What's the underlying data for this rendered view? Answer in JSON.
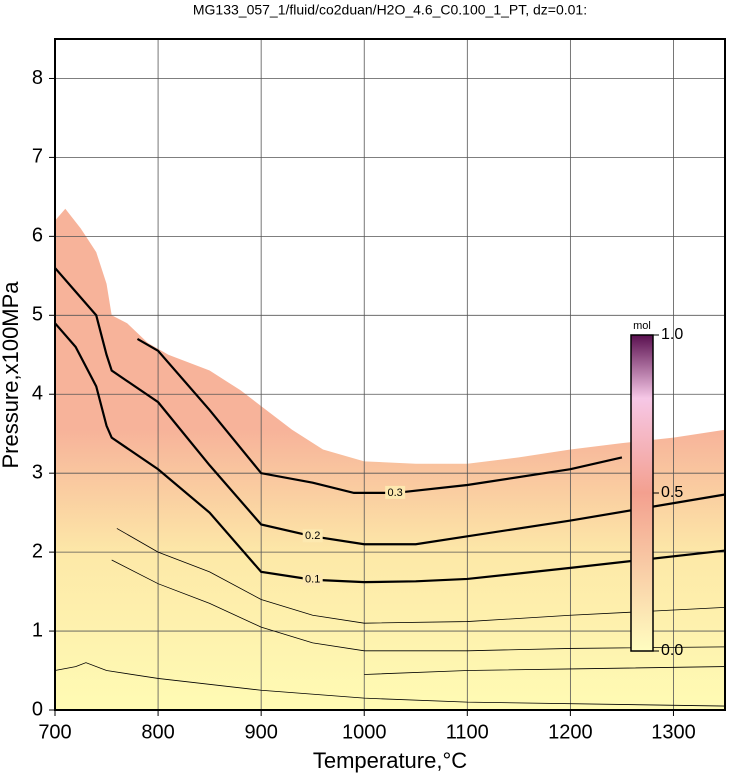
{
  "chart_data": {
    "type": "contour",
    "title": "MG133_057_1/fluid/co2duan/H2O_4.6_C0.100_1_PT, dz=0.01:",
    "x_label": "Temperature,°C",
    "y_label": "Pressure,x100MPa",
    "xlim": [
      700,
      1350
    ],
    "ylim": [
      0,
      8.5
    ],
    "xticks": [
      700,
      800,
      900,
      1000,
      1100,
      1200,
      1300
    ],
    "yticks": [
      0,
      1,
      2,
      3,
      4,
      5,
      6,
      7,
      8
    ],
    "grid": true,
    "boundary": {
      "x": [
        700,
        710,
        725,
        740,
        750,
        755,
        770,
        790,
        810,
        850,
        880,
        900,
        930,
        960,
        1000,
        1050,
        1100,
        1150,
        1200,
        1250,
        1300,
        1350
      ],
      "values": [
        6.2,
        6.35,
        6.1,
        5.8,
        5.4,
        5.0,
        4.9,
        4.65,
        4.5,
        4.3,
        4.05,
        3.85,
        3.55,
        3.3,
        3.15,
        3.12,
        3.12,
        3.2,
        3.3,
        3.38,
        3.45,
        3.55
      ]
    },
    "series": [
      {
        "name": "0.1",
        "x": [
          700,
          720,
          740,
          750,
          755,
          800,
          850,
          900,
          950,
          1000,
          1050,
          1100,
          1200,
          1350
        ],
        "values": [
          4.9,
          4.6,
          4.1,
          3.6,
          3.45,
          3.05,
          2.5,
          1.75,
          1.65,
          1.62,
          1.63,
          1.66,
          1.8,
          2.02
        ]
      },
      {
        "name": "0.2",
        "x": [
          700,
          720,
          740,
          750,
          755,
          800,
          850,
          900,
          950,
          1000,
          1050,
          1100,
          1200,
          1350
        ],
        "values": [
          5.6,
          5.3,
          5.0,
          4.5,
          4.3,
          3.9,
          3.1,
          2.35,
          2.2,
          2.1,
          2.1,
          2.2,
          2.4,
          2.73
        ]
      },
      {
        "name": "0.3",
        "x": [
          780,
          800,
          850,
          900,
          950,
          990,
          1030,
          1100,
          1200,
          1250
        ],
        "values": [
          4.7,
          4.55,
          3.8,
          3.0,
          2.88,
          2.75,
          2.75,
          2.85,
          3.05,
          3.2
        ]
      }
    ],
    "thin_contours": [
      {
        "x": [
          755,
          800,
          850,
          900,
          950,
          1000,
          1100,
          1200,
          1350
        ],
        "values": [
          1.9,
          1.6,
          1.35,
          1.05,
          0.85,
          0.75,
          0.75,
          0.78,
          0.8
        ]
      },
      {
        "x": [
          760,
          800,
          850,
          900,
          950,
          1000,
          1100,
          1200,
          1350
        ],
        "values": [
          2.3,
          2.0,
          1.75,
          1.4,
          1.2,
          1.1,
          1.12,
          1.2,
          1.3
        ]
      },
      {
        "x": [
          700,
          720,
          730,
          750,
          800,
          900,
          1000,
          1100,
          1350
        ],
        "values": [
          0.5,
          0.55,
          0.6,
          0.5,
          0.4,
          0.25,
          0.15,
          0.1,
          0.05
        ]
      },
      {
        "x": [
          1000,
          1100,
          1200,
          1350
        ],
        "values": [
          0.45,
          0.5,
          0.52,
          0.55
        ]
      }
    ],
    "colorbar": {
      "label": "mol",
      "ticks": [
        {
          "value": 0,
          "label": "0.0"
        },
        {
          "value": 0.5,
          "label": "0.5"
        },
        {
          "value": 1,
          "label": "1.0"
        }
      ]
    }
  }
}
